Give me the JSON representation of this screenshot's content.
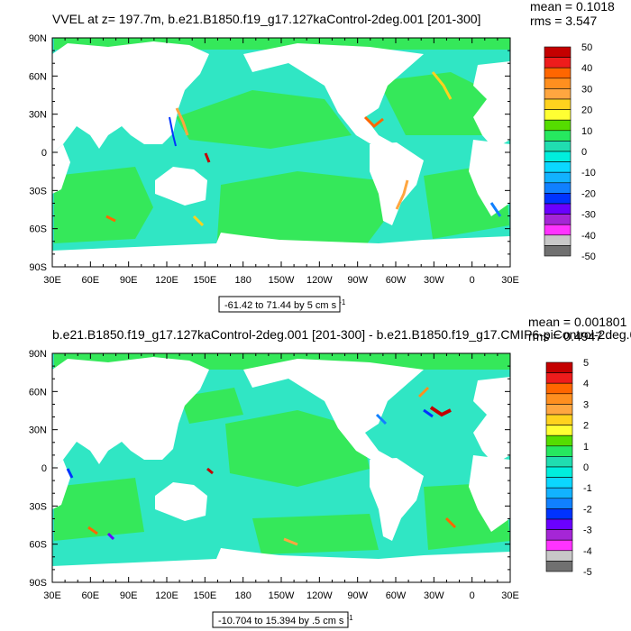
{
  "panels": [
    {
      "title": "VVEL at z= 197.7m, b.e21.B1850.f19_g17.127kaControl-2deg.001 [201-300]",
      "stats": {
        "mean": "mean = 0.1018",
        "rms": "rms = 3.547"
      },
      "range_label": "-61.42 to 71.44 by 5 cm s",
      "range_unit_exp": "-1",
      "colorbar_labels": [
        "50",
        "40",
        "30",
        "20",
        "10",
        "0",
        "-10",
        "-20",
        "-30",
        "-40",
        "-50"
      ]
    },
    {
      "title": "b.e21.B1850.f19_g17.127kaControl-2deg.001 [201-300] - b.e21.B1850.f19_g17.CMIP6-piControl-2deg.0",
      "stats": {
        "mean": "mean = 0.001801",
        "rms": "rms = 0.4947"
      },
      "range_label": "-10.704 to 15.394 by .5 cm s",
      "range_unit_exp": "-1",
      "colorbar_labels": [
        "5",
        "4",
        "3",
        "2",
        "1",
        "0",
        "-1",
        "-2",
        "-3",
        "-4",
        "-5"
      ]
    }
  ],
  "lon_labels": [
    "30E",
    "60E",
    "90E",
    "120E",
    "150E",
    "180",
    "150W",
    "120W",
    "90W",
    "60W",
    "30W",
    "0",
    "30E"
  ],
  "lat_labels": [
    "90N",
    "60N",
    "30N",
    "0",
    "30S",
    "60S",
    "90S"
  ],
  "colorbar_colors": [
    "#c40000",
    "#ee1c1c",
    "#ff6600",
    "#ff8f1f",
    "#ffa640",
    "#ffd21e",
    "#ffff33",
    "#55dd00",
    "#26e85f",
    "#20ddb0",
    "#00eedd",
    "#0bd7ff",
    "#12b2ff",
    "#1080ff",
    "#0033ff",
    "#6a00ff",
    "#a526d6",
    "#ff33ff",
    "#c8c8c8",
    "#707070"
  ],
  "colors": {
    "ocean_main": "#30e6c4",
    "ocean_alt": "#35e85a",
    "land": "#ffffff"
  }
}
